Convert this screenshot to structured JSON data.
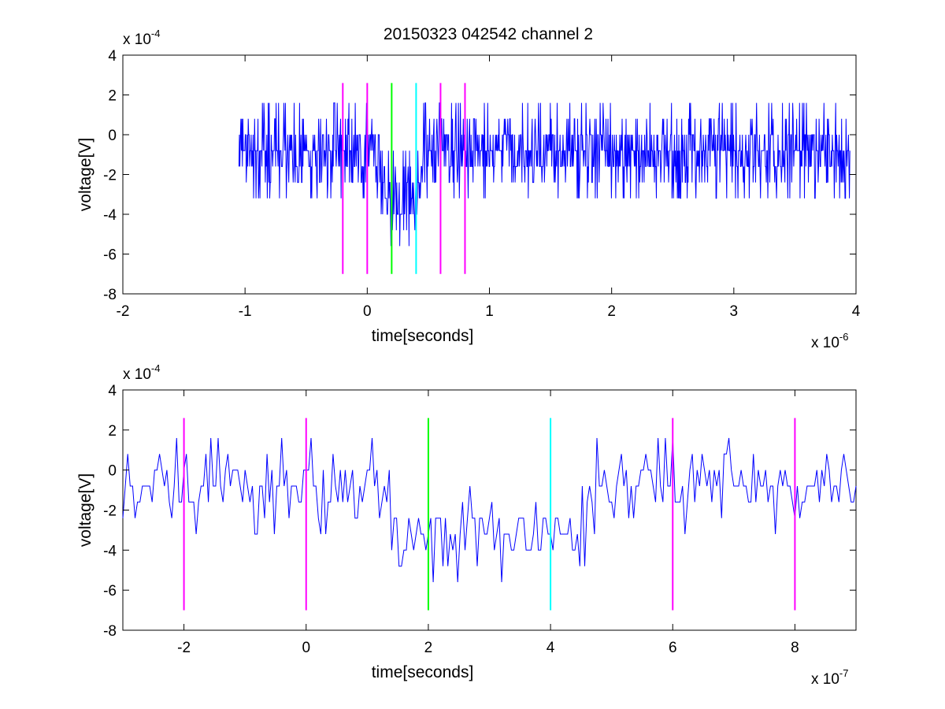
{
  "title": "20150323 042542 channel 2",
  "chart_data": [
    {
      "type": "line",
      "xlabel": "time[seconds]",
      "ylabel": "voltage[V]",
      "x_exponent": {
        "base": "x 10",
        "power": "-6"
      },
      "y_exponent": {
        "base": "x 10",
        "power": "-4"
      },
      "xlim": [
        -2,
        4
      ],
      "ylim": [
        -8,
        4
      ],
      "xticks": [
        -2,
        -1,
        0,
        1,
        2,
        3,
        4
      ],
      "yticks": [
        -8,
        -6,
        -4,
        -2,
        0,
        2,
        4
      ],
      "xtick_labels": [
        "-2",
        "-1",
        "0",
        "1",
        "2",
        "3",
        "4"
      ],
      "ytick_labels": [
        "-8",
        "-6",
        "-4",
        "-2",
        "0",
        "2",
        "4"
      ],
      "grid": false,
      "signal": {
        "color": "#0000ff",
        "dt": 0.004,
        "x_start": -1.05,
        "x_end": 3.95,
        "quantum": 0.8,
        "baseline": -0.8,
        "dip": {
          "start": 0.15,
          "end": 0.42,
          "depth": -3.2,
          "ramp": 0.05
        },
        "clip": [
          -6.4,
          2.4
        ]
      },
      "markers": [
        {
          "x": -0.2,
          "color": "#ff00ff",
          "ymin": -7.0,
          "ymax": 2.6
        },
        {
          "x": 0.0,
          "color": "#ff00ff",
          "ymin": -7.0,
          "ymax": 2.6
        },
        {
          "x": 0.2,
          "color": "#00ff00",
          "ymin": -7.0,
          "ymax": 2.6
        },
        {
          "x": 0.4,
          "color": "#00ffff",
          "ymin": -7.0,
          "ymax": 2.6
        },
        {
          "x": 0.6,
          "color": "#ff00ff",
          "ymin": -7.0,
          "ymax": 2.6
        },
        {
          "x": 0.8,
          "color": "#ff00ff",
          "ymin": -7.0,
          "ymax": 2.6
        }
      ]
    },
    {
      "type": "line",
      "xlabel": "time[seconds]",
      "ylabel": "voltage[V]",
      "x_exponent": {
        "base": "x 10",
        "power": "-7"
      },
      "y_exponent": {
        "base": "x 10",
        "power": "-4"
      },
      "xlim": [
        -3,
        9
      ],
      "ylim": [
        -8,
        4
      ],
      "xticks": [
        -2,
        0,
        2,
        4,
        6,
        8
      ],
      "yticks": [
        -8,
        -6,
        -4,
        -2,
        0,
        2,
        4
      ],
      "xtick_labels": [
        "-2",
        "0",
        "2",
        "4",
        "6",
        "8"
      ],
      "ytick_labels": [
        "-8",
        "-6",
        "-4",
        "-2",
        "0",
        "2",
        "4"
      ],
      "grid": false,
      "signal": {
        "color": "#0000ff",
        "dt": 0.04,
        "x_start": -3,
        "x_end": 9,
        "quantum": 0.8,
        "baseline": -0.8,
        "dip": {
          "start": 1.6,
          "end": 4.4,
          "depth": -3.4,
          "ramp": 0.4
        },
        "clip": [
          -6.4,
          2.4
        ]
      },
      "markers": [
        {
          "x": -2,
          "color": "#ff00ff",
          "ymin": -7.0,
          "ymax": 2.6
        },
        {
          "x": 0,
          "color": "#ff00ff",
          "ymin": -7.0,
          "ymax": 2.6
        },
        {
          "x": 2,
          "color": "#00ff00",
          "ymin": -7.0,
          "ymax": 2.6
        },
        {
          "x": 4,
          "color": "#00ffff",
          "ymin": -7.0,
          "ymax": 2.6
        },
        {
          "x": 6,
          "color": "#ff00ff",
          "ymin": -7.0,
          "ymax": 2.6
        },
        {
          "x": 8,
          "color": "#ff00ff",
          "ymin": -7.0,
          "ymax": 2.6
        }
      ]
    }
  ]
}
